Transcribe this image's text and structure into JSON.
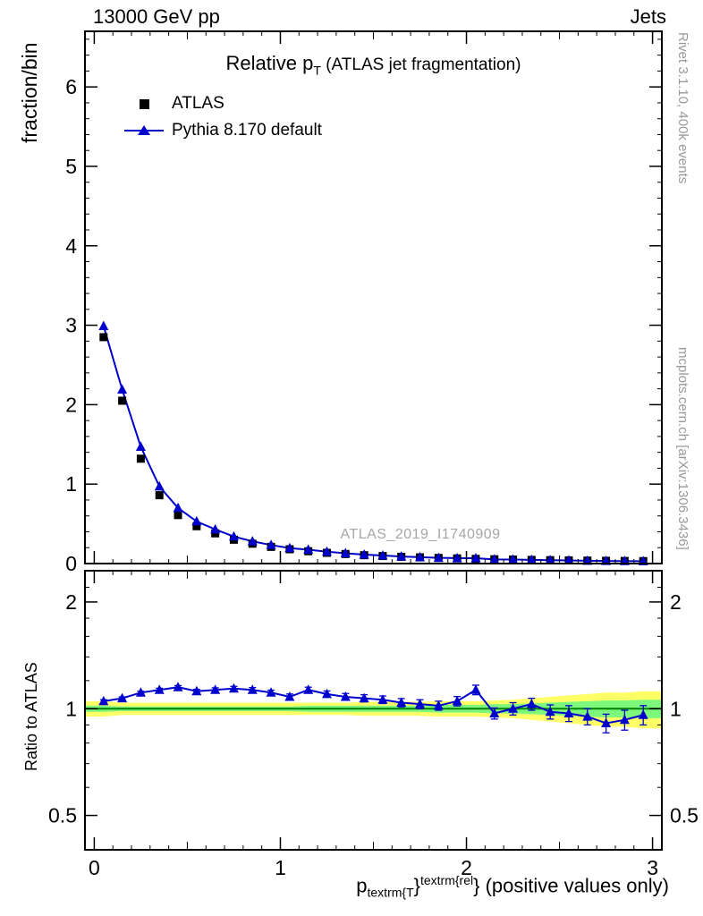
{
  "header": {
    "left": "13000 GeV pp",
    "right": "Jets"
  },
  "side_labels": {
    "rivet": "Rivet 3.1.10,  400k events",
    "mcplots": "mcplots.cern.ch [arXiv:1306.3436]"
  },
  "watermark": "ATLAS_2019_I1740909",
  "title": {
    "pre": "Relative p",
    "sub": "T",
    "post": " (ATLAS jet fragmentation)"
  },
  "xtitle": {
    "base": "p",
    "sub": "textrm{T",
    "brace": "}",
    "sup": "textrm{rel",
    "tail": "} (positive values only)"
  },
  "legend": {
    "items": [
      {
        "label": "ATLAS"
      },
      {
        "label": "Pythia 8.170 default"
      }
    ]
  },
  "colors": {
    "atlas": "#000000",
    "pythia": "#0000cc",
    "band_outer": "#ffff66",
    "band_inner": "#7df87d",
    "ref_line": "#008000",
    "muted_text": "#999999",
    "watermark_text": "#a6a6a6"
  },
  "chart_data": [
    {
      "type": "line",
      "panel": "main",
      "title": "Relative p_T (ATLAS jet fragmentation)",
      "xlabel": "p_textrm{T}^textrm{rel} (positive values only)",
      "ylabel": "fraction/bin",
      "xlim": [
        0,
        3
      ],
      "ylim": [
        0,
        6.7
      ],
      "xticks": [
        0,
        1,
        2,
        3
      ],
      "yticks": [
        0,
        1,
        2,
        3,
        4,
        5,
        6
      ],
      "grid": false,
      "legend_position": "upper-left",
      "x": [
        0.05,
        0.15,
        0.25,
        0.35,
        0.45,
        0.55,
        0.65,
        0.75,
        0.85,
        0.95,
        1.05,
        1.15,
        1.25,
        1.35,
        1.45,
        1.55,
        1.65,
        1.75,
        1.85,
        1.95,
        2.05,
        2.15,
        2.25,
        2.35,
        2.45,
        2.55,
        2.65,
        2.75,
        2.85,
        2.95
      ],
      "series": [
        {
          "name": "ATLAS",
          "marker": "square",
          "line": false,
          "color": "#000000",
          "values": [
            2.85,
            2.05,
            1.32,
            0.86,
            0.61,
            0.47,
            0.38,
            0.3,
            0.25,
            0.21,
            0.18,
            0.155,
            0.135,
            0.12,
            0.105,
            0.095,
            0.085,
            0.078,
            0.071,
            0.065,
            0.059,
            0.054,
            0.05,
            0.046,
            0.043,
            0.04,
            0.037,
            0.035,
            0.033,
            0.031
          ]
        },
        {
          "name": "Pythia 8.170 default",
          "marker": "triangle",
          "line": true,
          "color": "#0000cc",
          "values": [
            2.99,
            2.19,
            1.47,
            0.97,
            0.7,
            0.53,
            0.43,
            0.34,
            0.28,
            0.233,
            0.194,
            0.175,
            0.149,
            0.13,
            0.112,
            0.101,
            0.088,
            0.08,
            0.072,
            0.068,
            0.067,
            0.052,
            0.05,
            0.047,
            0.042,
            0.039,
            0.035,
            0.032,
            0.031,
            0.03
          ]
        }
      ]
    },
    {
      "type": "line",
      "panel": "ratio",
      "ylabel": "Ratio to ATLAS",
      "yscale": "log",
      "xlim": [
        0,
        3
      ],
      "ylim": [
        0.4,
        2.45
      ],
      "xticks": [
        0,
        1,
        2,
        3
      ],
      "yticks": [
        0.5,
        1,
        2
      ],
      "x": [
        0.05,
        0.15,
        0.25,
        0.35,
        0.45,
        0.55,
        0.65,
        0.75,
        0.85,
        0.95,
        1.05,
        1.15,
        1.25,
        1.35,
        1.45,
        1.55,
        1.65,
        1.75,
        1.85,
        1.95,
        2.05,
        2.15,
        2.25,
        2.35,
        2.45,
        2.55,
        2.65,
        2.75,
        2.85,
        2.95
      ],
      "ratio": [
        1.05,
        1.07,
        1.11,
        1.13,
        1.15,
        1.12,
        1.13,
        1.14,
        1.13,
        1.11,
        1.08,
        1.13,
        1.1,
        1.08,
        1.07,
        1.06,
        1.04,
        1.03,
        1.02,
        1.05,
        1.13,
        0.97,
        1.0,
        1.03,
        0.98,
        0.97,
        0.95,
        0.91,
        0.93,
        0.96
      ],
      "ratio_err": [
        0.01,
        0.01,
        0.01,
        0.012,
        0.012,
        0.014,
        0.015,
        0.016,
        0.017,
        0.018,
        0.02,
        0.02,
        0.022,
        0.024,
        0.025,
        0.026,
        0.028,
        0.03,
        0.03,
        0.032,
        0.035,
        0.035,
        0.04,
        0.04,
        0.045,
        0.05,
        0.05,
        0.055,
        0.06,
        0.06
      ],
      "band_outer_halfwidth": [
        0.05,
        0.04,
        0.04,
        0.04,
        0.04,
        0.04,
        0.04,
        0.04,
        0.04,
        0.04,
        0.04,
        0.04,
        0.04,
        0.04,
        0.045,
        0.045,
        0.045,
        0.045,
        0.05,
        0.05,
        0.05,
        0.055,
        0.06,
        0.07,
        0.08,
        0.09,
        0.1,
        0.11,
        0.11,
        0.12
      ],
      "band_inner_halfwidth": [
        0.02,
        0.015,
        0.015,
        0.015,
        0.015,
        0.015,
        0.015,
        0.015,
        0.015,
        0.015,
        0.015,
        0.02,
        0.02,
        0.02,
        0.02,
        0.02,
        0.02,
        0.02,
        0.025,
        0.025,
        0.025,
        0.03,
        0.03,
        0.035,
        0.04,
        0.045,
        0.05,
        0.055,
        0.055,
        0.06
      ]
    }
  ]
}
